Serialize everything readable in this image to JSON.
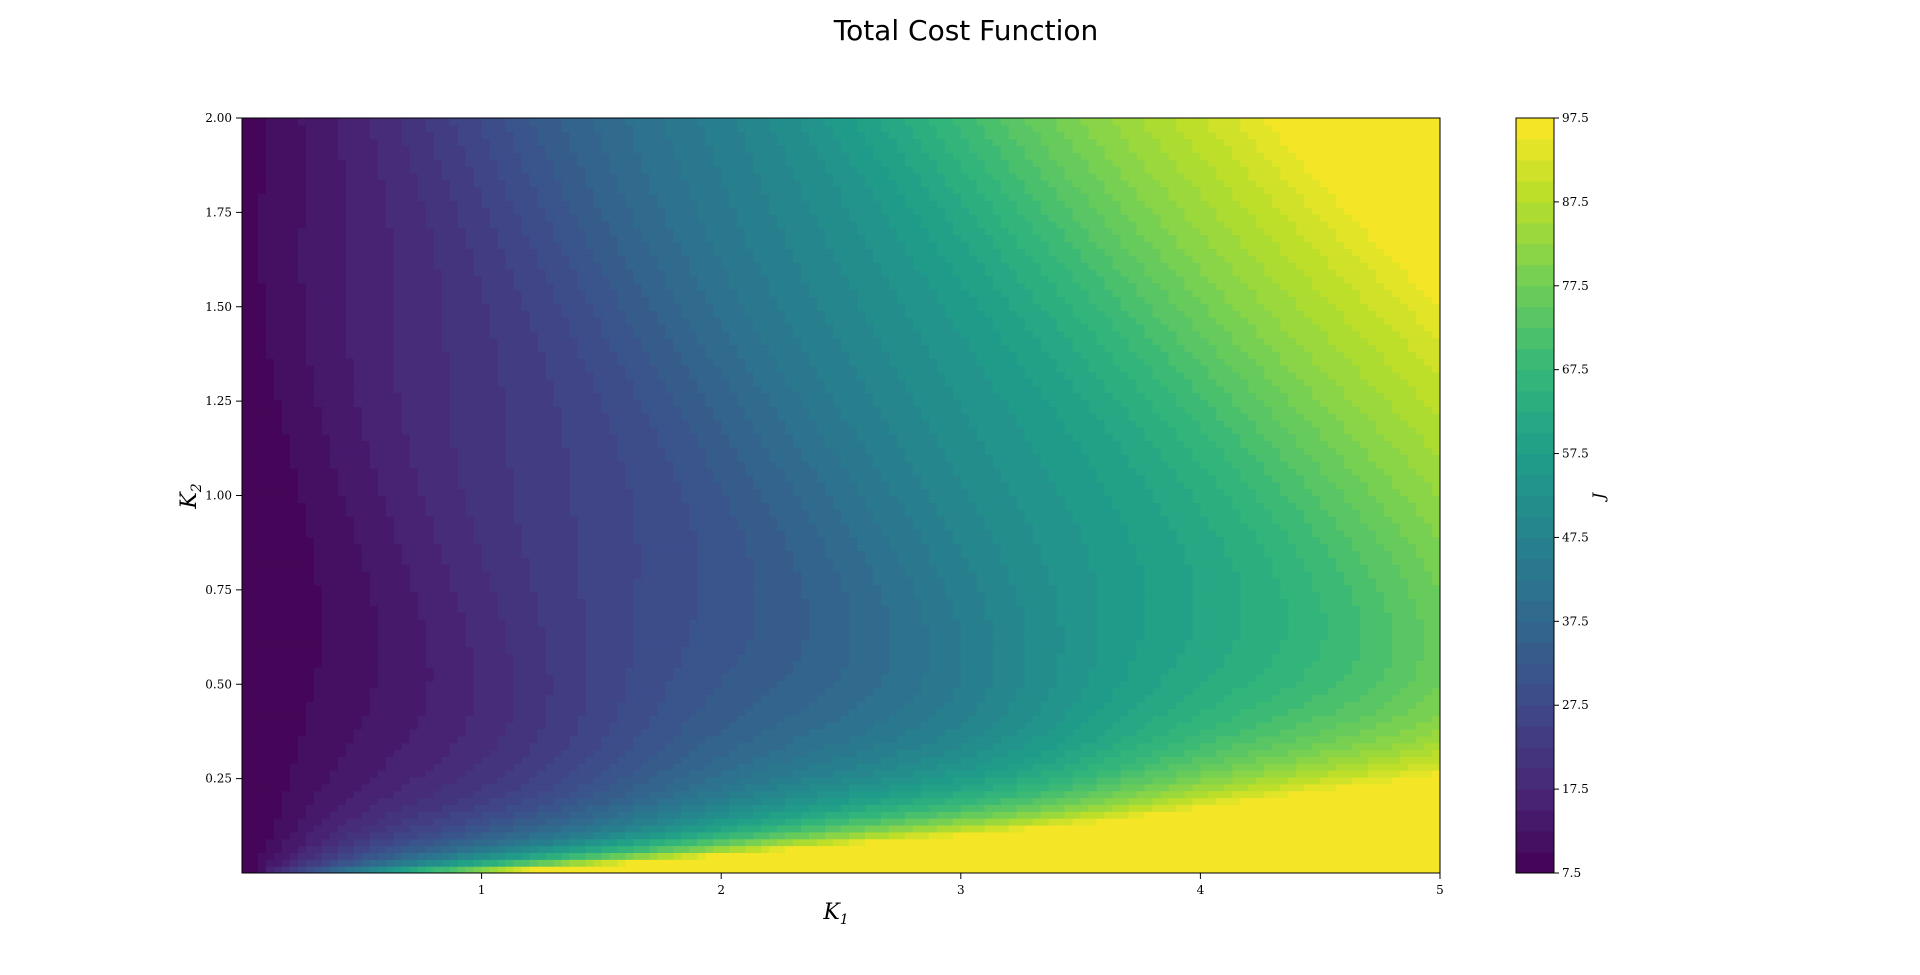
{
  "chart_data": {
    "type": "contour",
    "title": "Total Cost Function",
    "xlabel": "K",
    "xlabel_sub": "1",
    "ylabel": "K",
    "ylabel_sub": "2",
    "xlim": [
      0,
      5
    ],
    "ylim": [
      0,
      2
    ],
    "x_ticks": [
      1,
      2,
      3,
      4,
      5
    ],
    "x_tick_labels": [
      "1",
      "2",
      "3",
      "4",
      "5"
    ],
    "y_ticks": [
      0.25,
      0.5,
      0.75,
      1.0,
      1.25,
      1.5,
      1.75,
      2.0
    ],
    "y_tick_labels": [
      "0.25",
      "0.50",
      "0.75",
      "1.00",
      "1.25",
      "1.50",
      "1.75",
      "2.00"
    ],
    "colormap": "viridis",
    "colorbar": {
      "label": "J",
      "range": [
        7.5,
        97.5
      ],
      "level_step": 2.5,
      "ticks": [
        7.5,
        17.5,
        27.5,
        37.5,
        47.5,
        57.5,
        67.5,
        77.5,
        87.5,
        97.5
      ],
      "tick_labels": [
        "7.5",
        "17.5",
        "27.5",
        "37.5",
        "47.5",
        "57.5",
        "67.5",
        "77.5",
        "87.5",
        "97.5"
      ]
    },
    "grid": false
  }
}
